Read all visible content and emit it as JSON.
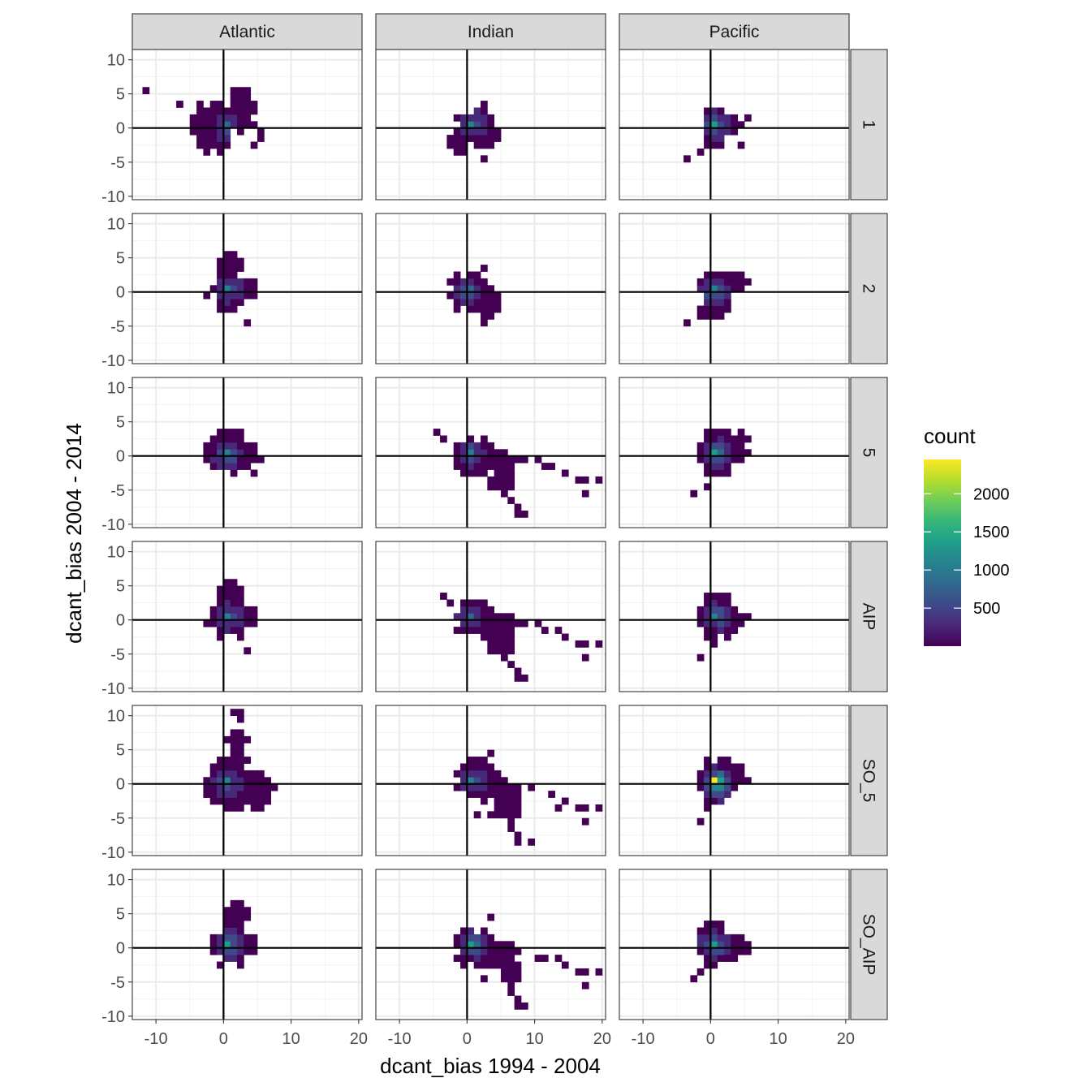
{
  "chart_data": {
    "type": "heatmap",
    "subtype": "2d-binned-count-faceted",
    "xlabel": "dcant_bias 1994 - 2004",
    "ylabel": "dcant_bias 2004 - 2014",
    "xlim": [
      -13.5,
      20.5
    ],
    "ylim": [
      -10.5,
      11.5
    ],
    "x_ticks": [
      -10,
      0,
      10,
      20
    ],
    "y_ticks": [
      -10,
      -5,
      0,
      5,
      10
    ],
    "reference_lines": {
      "x": 0,
      "y": 0
    },
    "grid": true,
    "facet_columns": [
      "Atlantic",
      "Indian",
      "Pacific"
    ],
    "facet_rows": [
      "1",
      "2",
      "5",
      "AIP",
      "SO_5",
      "SO_AIP"
    ],
    "colorbar": {
      "title": "count",
      "palette": "viridis",
      "colors": [
        "#440154",
        "#482878",
        "#3E4A89",
        "#31688E",
        "#26828E",
        "#1F9E89",
        "#35B779",
        "#6DCD59",
        "#B4DE2C",
        "#FDE725"
      ],
      "range": [
        1,
        2450
      ],
      "ticks": [
        500,
        1000,
        1500,
        2000
      ],
      "position": "right"
    },
    "panels": [
      {
        "row": "1",
        "column": "Atlantic",
        "dense": [
          {
            "x": -1.5,
            "y": 0,
            "rx": 3,
            "ry": 3.5
          },
          {
            "x": 3,
            "y": 2.5,
            "rx": 1.5,
            "ry": 3
          }
        ],
        "peak": {
          "x": 0.5,
          "y": 0,
          "count": 900
        },
        "bins": [
          [
            -11.5,
            5
          ],
          [
            -6.5,
            3.5
          ],
          [
            -3.5,
            3
          ],
          [
            1.5,
            5
          ],
          [
            5.5,
            -0.5
          ],
          [
            5,
            -1.5
          ],
          [
            4,
            -3
          ]
        ]
      },
      {
        "row": "1",
        "column": "Indian",
        "dense": [
          {
            "x": 0.5,
            "y": -0.5,
            "rx": 2.5,
            "ry": 2.5
          },
          {
            "x": -1.5,
            "y": -2.5,
            "rx": 1.5,
            "ry": 1.5
          },
          {
            "x": 3.5,
            "y": -1.5,
            "rx": 1,
            "ry": 2
          }
        ],
        "peak": {
          "x": 0.5,
          "y": 0,
          "count": 1100
        },
        "bins": [
          [
            2.5,
            3
          ],
          [
            2.5,
            -5
          ],
          [
            -2,
            -3.5
          ]
        ]
      },
      {
        "row": "1",
        "column": "Pacific",
        "dense": [
          {
            "x": 0.5,
            "y": -0.5,
            "rx": 2,
            "ry": 2.5
          },
          {
            "x": 3,
            "y": 0,
            "rx": 1.5,
            "ry": 1
          }
        ],
        "peak": {
          "x": 0.5,
          "y": 0,
          "count": 1300
        },
        "bins": [
          [
            5.5,
            1
          ],
          [
            4,
            -2.5
          ],
          [
            -3.5,
            -5
          ],
          [
            -1.5,
            -3.5
          ]
        ]
      },
      {
        "row": "2",
        "column": "Atlantic",
        "dense": [
          {
            "x": 0.5,
            "y": 0,
            "rx": 2.5,
            "ry": 3
          },
          {
            "x": 1,
            "y": 3,
            "rx": 1.5,
            "ry": 2.5
          },
          {
            "x": 4,
            "y": 0.5,
            "rx": 1.5,
            "ry": 1
          }
        ],
        "peak": {
          "x": 0.5,
          "y": 0,
          "count": 1000
        },
        "bins": [
          [
            -3,
            -0.5
          ],
          [
            3.5,
            -4.5
          ],
          [
            1,
            5.5
          ]
        ]
      },
      {
        "row": "2",
        "column": "Indian",
        "dense": [
          {
            "x": 0,
            "y": 0,
            "rx": 2.5,
            "ry": 2.5
          },
          {
            "x": 3,
            "y": -2,
            "rx": 1.5,
            "ry": 2
          }
        ],
        "peak": {
          "x": 0,
          "y": 0,
          "count": 900
        },
        "bins": [
          [
            -2,
            -3
          ],
          [
            2.5,
            -4.5
          ],
          [
            2,
            3
          ]
        ]
      },
      {
        "row": "2",
        "column": "Pacific",
        "dense": [
          {
            "x": 0.5,
            "y": -0.5,
            "rx": 2,
            "ry": 3
          },
          {
            "x": 3,
            "y": 0.5,
            "rx": 1.5,
            "ry": 1.5
          }
        ],
        "peak": {
          "x": 0.5,
          "y": 0,
          "count": 1200
        },
        "bins": [
          [
            5.5,
            1
          ],
          [
            -3.5,
            -5
          ],
          [
            -1.5,
            -4
          ],
          [
            4,
            2
          ]
        ]
      },
      {
        "row": "5",
        "column": "Atlantic",
        "dense": [
          {
            "x": 1,
            "y": 0.5,
            "rx": 3.5,
            "ry": 3
          }
        ],
        "peak": {
          "x": 0.5,
          "y": 0,
          "count": 1200
        },
        "bins": [
          [
            -3,
            -0.5
          ],
          [
            4.5,
            -3
          ],
          [
            5,
            -1
          ],
          [
            2.5,
            3
          ]
        ]
      },
      {
        "row": "5",
        "column": "Indian",
        "dense": [
          {
            "x": 0.5,
            "y": -0.5,
            "rx": 2.5,
            "ry": 2.5
          },
          {
            "x": 4,
            "y": -0.5,
            "rx": 3,
            "ry": 1
          },
          {
            "x": 5,
            "y": -4,
            "rx": 1.5,
            "ry": 2
          }
        ],
        "peak": {
          "x": 0,
          "y": 0,
          "count": 1000
        },
        "bins": [
          [
            -4.5,
            3
          ],
          [
            -3.5,
            2
          ],
          [
            7,
            -1
          ],
          [
            8.5,
            -1
          ],
          [
            10.5,
            -1
          ],
          [
            11.5,
            -1.5
          ],
          [
            12.5,
            -2
          ],
          [
            14.5,
            -2.5
          ],
          [
            16,
            -3.5
          ],
          [
            17.5,
            -3.5
          ],
          [
            19,
            -3.5
          ],
          [
            17,
            -5.5
          ],
          [
            6.5,
            -6.5
          ],
          [
            7,
            -7.5
          ],
          [
            7.5,
            -8.5
          ],
          [
            8.5,
            -8.5
          ]
        ]
      },
      {
        "row": "5",
        "column": "Pacific",
        "dense": [
          {
            "x": 0.5,
            "y": 0,
            "rx": 2.5,
            "ry": 3
          },
          {
            "x": 3,
            "y": 1,
            "rx": 2,
            "ry": 2
          }
        ],
        "peak": {
          "x": 0.5,
          "y": 0,
          "count": 1300
        },
        "bins": [
          [
            -2.5,
            -5.5
          ],
          [
            -0.5,
            -4.5
          ],
          [
            5.5,
            0.5
          ],
          [
            4.5,
            3
          ]
        ]
      },
      {
        "row": "AIP",
        "column": "Atlantic",
        "dense": [
          {
            "x": 0.5,
            "y": 0,
            "rx": 2.5,
            "ry": 3
          },
          {
            "x": 1,
            "y": 3,
            "rx": 1.5,
            "ry": 2.5
          },
          {
            "x": 4,
            "y": 0.5,
            "rx": 1.5,
            "ry": 1
          }
        ],
        "peak": {
          "x": 0.5,
          "y": 0,
          "count": 1000
        },
        "bins": [
          [
            -3,
            -0.5
          ],
          [
            3.5,
            -4.5
          ],
          [
            1.5,
            5.5
          ]
        ]
      },
      {
        "row": "AIP",
        "column": "Indian",
        "dense": [
          {
            "x": 0.5,
            "y": -0.5,
            "rx": 2.5,
            "ry": 2.5
          },
          {
            "x": 4,
            "y": -0.5,
            "rx": 3,
            "ry": 1
          },
          {
            "x": 5,
            "y": -4,
            "rx": 1.5,
            "ry": 2
          }
        ],
        "peak": {
          "x": 0,
          "y": 0,
          "count": 900
        },
        "bins": [
          [
            -3.5,
            3
          ],
          [
            -2.5,
            2
          ],
          [
            7,
            -1
          ],
          [
            8.5,
            -1
          ],
          [
            10.5,
            -1
          ],
          [
            11.5,
            -1.5
          ],
          [
            13,
            -2
          ],
          [
            14.5,
            -2.5
          ],
          [
            16,
            -3.5
          ],
          [
            17.5,
            -3.5
          ],
          [
            19,
            -3.5
          ],
          [
            17,
            -5.5
          ],
          [
            6.5,
            -6.5
          ],
          [
            7,
            -7.5
          ],
          [
            7.5,
            -8.5
          ],
          [
            8.5,
            -8.5
          ]
        ]
      },
      {
        "row": "AIP",
        "column": "Pacific",
        "dense": [
          {
            "x": 0.5,
            "y": 0,
            "rx": 2.5,
            "ry": 3
          },
          {
            "x": 3,
            "y": 0,
            "rx": 2,
            "ry": 1.5
          }
        ],
        "peak": {
          "x": 0.5,
          "y": 0,
          "count": 1200
        },
        "bins": [
          [
            -1.5,
            -5.5
          ],
          [
            0,
            -4
          ],
          [
            5.5,
            0
          ]
        ]
      },
      {
        "row": "SO_5",
        "column": "Atlantic",
        "dense": [
          {
            "x": 1,
            "y": 0,
            "rx": 3.5,
            "ry": 3.5
          },
          {
            "x": 1.5,
            "y": 4.5,
            "rx": 1.5,
            "ry": 3
          },
          {
            "x": 4.5,
            "y": -1,
            "rx": 2,
            "ry": 2.5
          }
        ],
        "peak": {
          "x": 0.5,
          "y": 0,
          "count": 1200
        },
        "bins": [
          [
            1.5,
            10
          ],
          [
            2.5,
            10.5
          ],
          [
            2.5,
            9.5
          ],
          [
            6.5,
            -0.5
          ],
          [
            7,
            -1
          ],
          [
            5.5,
            -3.5
          ],
          [
            -3,
            -0.5
          ]
        ]
      },
      {
        "row": "SO_5",
        "column": "Indian",
        "dense": [
          {
            "x": 1,
            "y": 0,
            "rx": 3,
            "ry": 3
          },
          {
            "x": 5,
            "y": -1,
            "rx": 2,
            "ry": 1.5
          },
          {
            "x": 5.5,
            "y": -4,
            "rx": 1.5,
            "ry": 2
          }
        ],
        "peak": {
          "x": 0.5,
          "y": 0,
          "count": 1000
        },
        "bins": [
          [
            3.5,
            4
          ],
          [
            9,
            -1
          ],
          [
            12.5,
            -1.5
          ],
          [
            14.5,
            -2.5
          ],
          [
            16,
            -3.5
          ],
          [
            17.5,
            -3.5
          ],
          [
            19,
            -3.5
          ],
          [
            17,
            -5.5
          ],
          [
            1.5,
            -5
          ],
          [
            3,
            -5
          ],
          [
            4.5,
            -5
          ],
          [
            6.5,
            -6.5
          ],
          [
            7,
            -7.5
          ],
          [
            7.5,
            -8.5
          ],
          [
            9,
            -8.5
          ],
          [
            13,
            -3.5
          ]
        ]
      },
      {
        "row": "SO_5",
        "column": "Pacific",
        "dense": [
          {
            "x": 0.5,
            "y": 0.5,
            "rx": 2.5,
            "ry": 3
          },
          {
            "x": 3,
            "y": 0.5,
            "rx": 2,
            "ry": 1.5
          }
        ],
        "peak": {
          "x": 0.5,
          "y": 0,
          "count": 2450
        },
        "bins": [
          [
            -1.5,
            -5.5
          ],
          [
            5.5,
            0.5
          ],
          [
            -0.5,
            -3.5
          ]
        ]
      },
      {
        "row": "SO_AIP",
        "column": "Atlantic",
        "dense": [
          {
            "x": 0.5,
            "y": 0,
            "rx": 2.5,
            "ry": 3
          },
          {
            "x": 1.5,
            "y": 3.5,
            "rx": 1.5,
            "ry": 2.5
          },
          {
            "x": 3.5,
            "y": 0.5,
            "rx": 1.5,
            "ry": 1
          }
        ],
        "peak": {
          "x": 0.5,
          "y": 0,
          "count": 1300
        },
        "bins": [
          [
            2,
            6
          ],
          [
            4.5,
            0
          ]
        ]
      },
      {
        "row": "SO_AIP",
        "column": "Indian",
        "dense": [
          {
            "x": 0.5,
            "y": -0.5,
            "rx": 2.5,
            "ry": 2.5
          },
          {
            "x": 5,
            "y": -1,
            "rx": 2.5,
            "ry": 1.5
          },
          {
            "x": 5.5,
            "y": -4,
            "rx": 1.5,
            "ry": 2
          }
        ],
        "peak": {
          "x": 0.5,
          "y": 0,
          "count": 1300
        },
        "bins": [
          [
            3.5,
            4
          ],
          [
            10,
            -1.5
          ],
          [
            11.5,
            -1.5
          ],
          [
            13.5,
            -2
          ],
          [
            14.5,
            -2.5
          ],
          [
            16,
            -3.5
          ],
          [
            17.5,
            -3.5
          ],
          [
            19,
            -3.5
          ],
          [
            17,
            -5.5
          ],
          [
            2.5,
            -4.5
          ],
          [
            6.5,
            -6.5
          ],
          [
            7,
            -7.5
          ],
          [
            7.5,
            -8.5
          ],
          [
            8.5,
            -8.5
          ]
        ]
      },
      {
        "row": "SO_AIP",
        "column": "Pacific",
        "dense": [
          {
            "x": 0.5,
            "y": 0,
            "rx": 2,
            "ry": 3
          },
          {
            "x": 3,
            "y": 0,
            "rx": 2,
            "ry": 1.5
          }
        ],
        "peak": {
          "x": 0.5,
          "y": 0,
          "count": 1300
        },
        "bins": [
          [
            -2.5,
            -5
          ],
          [
            -1.5,
            -3.5
          ],
          [
            5.5,
            0.5
          ]
        ]
      }
    ]
  }
}
